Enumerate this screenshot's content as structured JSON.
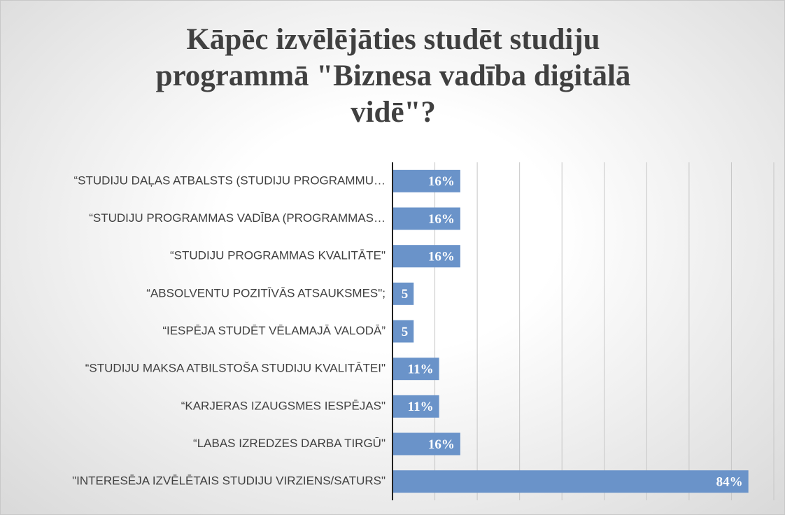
{
  "chart_data": {
    "type": "bar",
    "orientation": "horizontal",
    "title": "Kāpēc izvēlējāties studēt studiju programmā \"Biznesa vadība digitālā vidē\"?",
    "categories": [
      "“STUDIJU DAĻAS ATBALSTS (STUDIJU PROGRAMMU…",
      "“STUDIJU PROGRAMMAS VADĪBA (PROGRAMMAS…",
      "“STUDIJU PROGRAMMAS KVALITĀTE\"",
      "“ABSOLVENTU POZITĪVĀS ATSAUKSMES\";",
      "“IESPĒJA STUDĒT VĒLAMAJĀ VALODĀ”",
      "“STUDIJU MAKSA ATBILSTOŠA STUDIJU KVALITĀTEI\"",
      "“KARJERAS IZAUGSMES IESPĒJAS\"",
      "“LABAS IZREDZES DARBA TIRGŪ\"",
      "\"INTERESĒJA IZVĒLĒTAIS STUDIJU VIRZIENS/SATURS\""
    ],
    "values": [
      16,
      16,
      16,
      5,
      5,
      11,
      11,
      16,
      84
    ],
    "value_labels": [
      "16%",
      "16%",
      "16%",
      "5",
      "5",
      "11%",
      "11%",
      "16%",
      "84%"
    ],
    "color": "#6a93c9",
    "xlim": [
      0,
      90
    ],
    "xticks": [
      0,
      10,
      20,
      30,
      40,
      50,
      60,
      70,
      80,
      90
    ],
    "grid": true
  }
}
